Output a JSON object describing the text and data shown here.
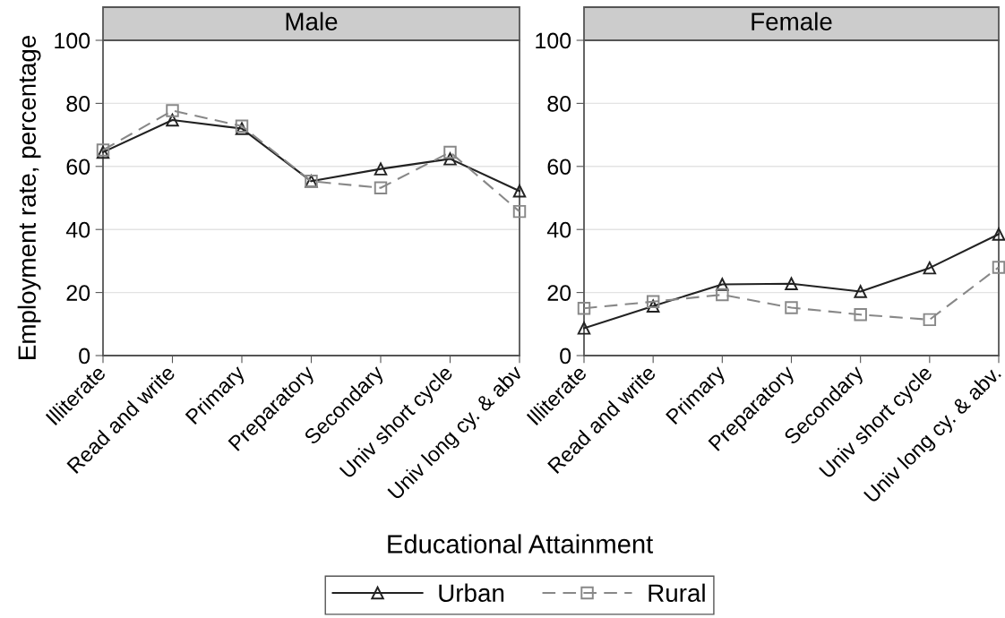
{
  "chart_data": [
    {
      "type": "line",
      "title": "Male",
      "ylabel": "Employment rate, percentage",
      "xlabel": "Educational Attainment",
      "legend": "bottom",
      "grid": "y",
      "ylim": [
        0,
        100
      ],
      "yticks": [
        0,
        20,
        40,
        60,
        80,
        100
      ],
      "categories": [
        "Illiterate",
        "Read and write",
        "Primary",
        "Preparatory",
        "Secondary",
        "Univ short cycle",
        "Univ long cy. & abv"
      ],
      "series": [
        {
          "name": "Urban",
          "color": "#222222",
          "marker": "triangle",
          "line_style": "solid",
          "values": [
            64.5,
            74.7,
            72.0,
            55.3,
            59.2,
            62.4,
            52.2
          ]
        },
        {
          "name": "Rural",
          "color": "#888888",
          "marker": "square",
          "line_style": "dashed",
          "values": [
            65.2,
            77.7,
            72.8,
            55.3,
            53.2,
            64.5,
            45.7
          ]
        }
      ]
    },
    {
      "type": "line",
      "title": "Female",
      "grid": "y",
      "ylim": [
        0,
        100
      ],
      "yticks": [
        0,
        20,
        40,
        60,
        80,
        100
      ],
      "categories": [
        "Illiterate",
        "Read and write",
        "Primary",
        "Preparatory",
        "Secondary",
        "Univ short cycle",
        "Univ long cy. & abv."
      ],
      "series": [
        {
          "name": "Urban",
          "color": "#222222",
          "marker": "triangle",
          "line_style": "solid",
          "values": [
            8.7,
            15.7,
            22.6,
            22.8,
            20.3,
            27.8,
            38.5
          ]
        },
        {
          "name": "Rural",
          "color": "#888888",
          "marker": "square",
          "line_style": "dashed",
          "values": [
            15.0,
            17.1,
            19.3,
            15.2,
            13.0,
            11.4,
            28.0
          ]
        }
      ]
    }
  ]
}
